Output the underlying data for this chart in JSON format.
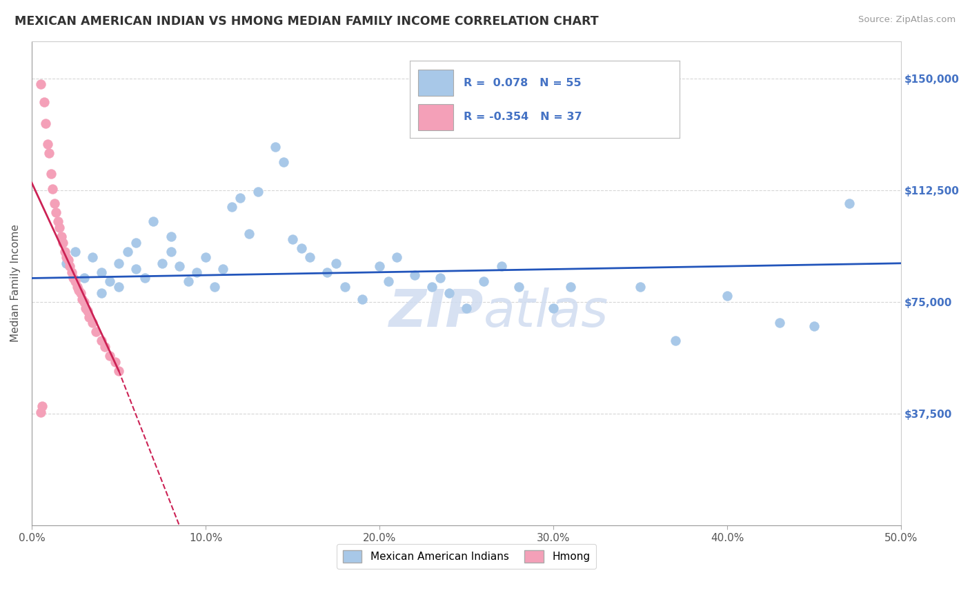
{
  "title": "MEXICAN AMERICAN INDIAN VS HMONG MEDIAN FAMILY INCOME CORRELATION CHART",
  "source": "Source: ZipAtlas.com",
  "ylabel": "Median Family Income",
  "xlim": [
    0.0,
    0.5
  ],
  "ylim": [
    0,
    162500
  ],
  "ytick_labels": [
    "$37,500",
    "$75,000",
    "$112,500",
    "$150,000"
  ],
  "ytick_values": [
    37500,
    75000,
    112500,
    150000
  ],
  "xtick_labels": [
    "0.0%",
    "10.0%",
    "20.0%",
    "30.0%",
    "40.0%",
    "50.0%"
  ],
  "xtick_values": [
    0.0,
    0.1,
    0.2,
    0.3,
    0.4,
    0.5
  ],
  "legend_labels": [
    "Mexican American Indians",
    "Hmong"
  ],
  "blue_color": "#A8C8E8",
  "pink_color": "#F4A0B8",
  "blue_line_color": "#2255BB",
  "pink_line_color": "#CC2255",
  "r_blue": "0.078",
  "n_blue": "55",
  "r_pink": "-0.354",
  "n_pink": "37",
  "blue_scatter_x": [
    0.02,
    0.025,
    0.03,
    0.035,
    0.04,
    0.04,
    0.045,
    0.05,
    0.05,
    0.055,
    0.06,
    0.06,
    0.065,
    0.07,
    0.075,
    0.08,
    0.08,
    0.085,
    0.09,
    0.095,
    0.1,
    0.105,
    0.11,
    0.115,
    0.12,
    0.125,
    0.13,
    0.14,
    0.145,
    0.15,
    0.155,
    0.16,
    0.17,
    0.175,
    0.18,
    0.19,
    0.2,
    0.205,
    0.21,
    0.22,
    0.23,
    0.235,
    0.24,
    0.25,
    0.26,
    0.27,
    0.28,
    0.3,
    0.31,
    0.35,
    0.37,
    0.4,
    0.43,
    0.45,
    0.47
  ],
  "blue_scatter_y": [
    88000,
    92000,
    83000,
    90000,
    78000,
    85000,
    82000,
    80000,
    88000,
    92000,
    95000,
    86000,
    83000,
    102000,
    88000,
    97000,
    92000,
    87000,
    82000,
    85000,
    90000,
    80000,
    86000,
    107000,
    110000,
    98000,
    112000,
    127000,
    122000,
    96000,
    93000,
    90000,
    85000,
    88000,
    80000,
    76000,
    87000,
    82000,
    90000,
    84000,
    80000,
    83000,
    78000,
    73000,
    82000,
    87000,
    80000,
    73000,
    80000,
    80000,
    62000,
    77000,
    68000,
    67000,
    108000
  ],
  "pink_scatter_x": [
    0.005,
    0.007,
    0.008,
    0.009,
    0.01,
    0.011,
    0.012,
    0.013,
    0.014,
    0.015,
    0.016,
    0.017,
    0.018,
    0.019,
    0.02,
    0.021,
    0.022,
    0.023,
    0.024,
    0.025,
    0.026,
    0.027,
    0.028,
    0.029,
    0.03,
    0.031,
    0.032,
    0.033,
    0.035,
    0.037,
    0.04,
    0.042,
    0.045,
    0.048,
    0.05,
    0.005,
    0.006
  ],
  "pink_scatter_y": [
    148000,
    142000,
    135000,
    128000,
    125000,
    118000,
    113000,
    108000,
    105000,
    102000,
    100000,
    97000,
    95000,
    92000,
    90000,
    89000,
    87000,
    85000,
    83000,
    82000,
    80000,
    79000,
    78000,
    76000,
    75000,
    73000,
    72000,
    70000,
    68000,
    65000,
    62000,
    60000,
    57000,
    55000,
    52000,
    38000,
    40000
  ],
  "watermark_top": "ZIP",
  "watermark_bot": "atlas",
  "background_color": "#FFFFFF",
  "grid_color": "#CCCCCC"
}
